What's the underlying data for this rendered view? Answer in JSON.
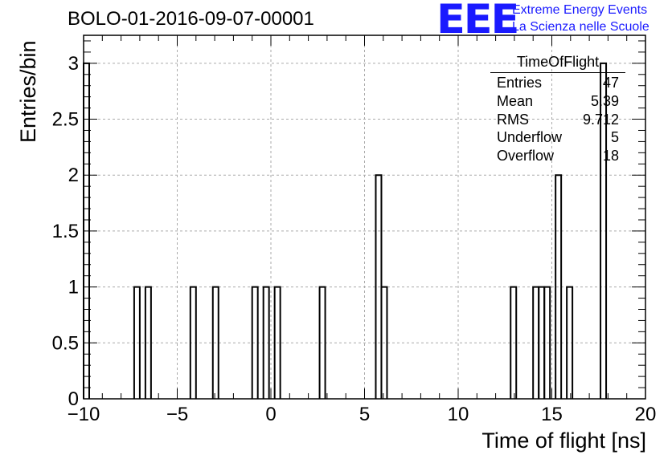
{
  "title": "BOLO-01-2016-09-07-00001",
  "logo": {
    "text": "EEE",
    "line1": "Extreme Energy Events",
    "line2": "La Scienza nelle Scuole",
    "color": "#1a1aff"
  },
  "stats": {
    "title": "TimeOfFlight",
    "rows": [
      {
        "label": "Entries",
        "value": "47"
      },
      {
        "label": "Mean",
        "value": "5.39"
      },
      {
        "label": "RMS",
        "value": "9.712"
      },
      {
        "label": "Underflow",
        "value": "5"
      },
      {
        "label": "Overflow",
        "value": "18"
      }
    ]
  },
  "chart_data": {
    "type": "bar",
    "title": "BOLO-01-2016-09-07-00001",
    "xlabel": "Time of flight [ns]",
    "ylabel": "Entries/bin",
    "xlim": [
      -10,
      20
    ],
    "ylim": [
      0,
      3.25
    ],
    "grid": true,
    "xticks": [
      -10,
      -5,
      0,
      5,
      10,
      15,
      20
    ],
    "xtick_labels": [
      "−10",
      "−5",
      "0",
      "5",
      "10",
      "15",
      "20"
    ],
    "yticks": [
      0,
      0.5,
      1,
      1.5,
      2,
      2.5,
      3
    ],
    "ytick_labels": [
      "0",
      "0.5",
      "1",
      "1.5",
      "2",
      "2.5",
      "3"
    ],
    "bin_width": 0.3,
    "bins": [
      {
        "x": -10.0,
        "value": 3
      },
      {
        "x": -7.3,
        "value": 1
      },
      {
        "x": -6.7,
        "value": 1
      },
      {
        "x": -4.3,
        "value": 1
      },
      {
        "x": -3.1,
        "value": 1
      },
      {
        "x": -1.0,
        "value": 1
      },
      {
        "x": -0.4,
        "value": 1
      },
      {
        "x": 0.2,
        "value": 1
      },
      {
        "x": 2.6,
        "value": 1
      },
      {
        "x": 5.6,
        "value": 2
      },
      {
        "x": 5.9,
        "value": 1
      },
      {
        "x": 12.8,
        "value": 1
      },
      {
        "x": 14.0,
        "value": 1
      },
      {
        "x": 14.3,
        "value": 1
      },
      {
        "x": 14.6,
        "value": 1
      },
      {
        "x": 15.2,
        "value": 2
      },
      {
        "x": 15.8,
        "value": 1
      },
      {
        "x": 17.6,
        "value": 3
      }
    ]
  }
}
